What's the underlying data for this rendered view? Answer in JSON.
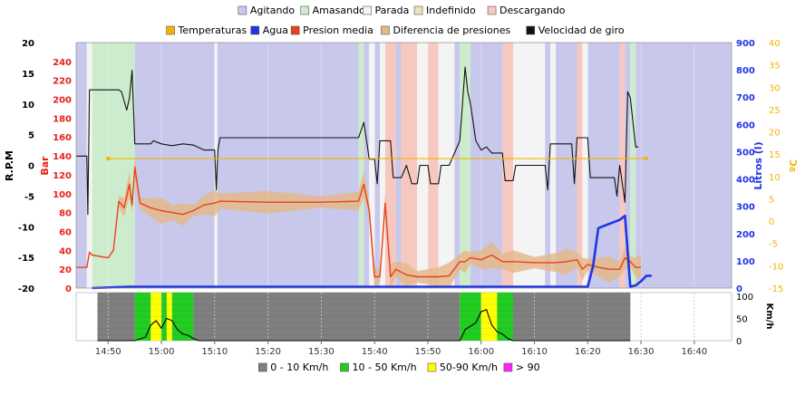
{
  "chart_data": [
    {
      "type": "line",
      "title": "",
      "legend_states": {
        "placement": "top",
        "items": [
          {
            "label": "Agitando",
            "color": "#c8c8ec"
          },
          {
            "label": "Amasando",
            "color": "#cdeccd"
          },
          {
            "label": "Parada",
            "color": "#f4f4f4"
          },
          {
            "label": "Indefinido",
            "color": "#e9e3bc"
          },
          {
            "label": "Descargando",
            "color": "#f6c8c0"
          }
        ]
      },
      "legend_series": {
        "placement": "top",
        "items": [
          {
            "label": "Temperaturas",
            "color": "#f4b400"
          },
          {
            "label": "Agua",
            "color": "#1f35e6"
          },
          {
            "label": "Presion media",
            "color": "#e8421c"
          },
          {
            "label": "Diferencia de presiones",
            "color": "#e4b88c"
          },
          {
            "label": "Velocidad de giro",
            "color": "#111111"
          }
        ]
      },
      "x_axis": {
        "ticks": [
          "14:50",
          "15:00",
          "15:10",
          "15:20",
          "15:30",
          "15:40",
          "15:50",
          "16:00",
          "16:10",
          "16:20",
          "16:30",
          "16:40"
        ],
        "range": [
          "14:44",
          "16:47"
        ]
      },
      "axes": {
        "rpm": {
          "label": "R.P.M",
          "color": "#000000",
          "ylim": [
            -20,
            20
          ],
          "ticks": [
            20,
            15,
            10,
            5,
            0,
            -5,
            -10,
            -15,
            -20
          ]
        },
        "bar": {
          "label": "Bar",
          "color": "#e8201c",
          "ylim": [
            0,
            260
          ],
          "ticks": [
            240,
            220,
            200,
            180,
            160,
            140,
            120,
            100,
            80,
            60,
            40,
            20,
            0
          ]
        },
        "litros": {
          "label": "Litros (l)",
          "color": "#1f35e6",
          "ylim": [
            0,
            900
          ],
          "ticks": [
            900,
            800,
            700,
            600,
            500,
            400,
            300,
            200,
            100,
            0
          ]
        },
        "temp": {
          "label": "ºC",
          "color": "#f4b400",
          "ylim": [
            -15,
            40
          ],
          "ticks": [
            40,
            35,
            30,
            25,
            20,
            15,
            10,
            5,
            0,
            -5,
            -10,
            -15
          ]
        }
      },
      "state_bands": [
        [
          "14:44",
          "14:46",
          "Agitando"
        ],
        [
          "14:46",
          "14:47",
          "Parada"
        ],
        [
          "14:47",
          "14:55",
          "Amasando"
        ],
        [
          "14:55",
          "15:10",
          "Agitando"
        ],
        [
          "15:10",
          "15:10.5",
          "Parada"
        ],
        [
          "15:10.5",
          "15:37",
          "Agitando"
        ],
        [
          "15:37",
          "15:38",
          "Amasando"
        ],
        [
          "15:38",
          "15:39",
          "Agitando"
        ],
        [
          "15:39",
          "15:40",
          "Parada"
        ],
        [
          "15:40",
          "15:41",
          "Agitando"
        ],
        [
          "15:41",
          "15:42",
          "Parada"
        ],
        [
          "15:42",
          "15:44",
          "Descargando"
        ],
        [
          "15:44",
          "15:45",
          "Agitando"
        ],
        [
          "15:45",
          "15:48",
          "Descargando"
        ],
        [
          "15:48",
          "15:50",
          "Parada"
        ],
        [
          "15:50",
          "15:52",
          "Descargando"
        ],
        [
          "15:52",
          "15:55",
          "Parada"
        ],
        [
          "15:55",
          "15:56",
          "Agitando"
        ],
        [
          "15:56",
          "15:58",
          "Amasando"
        ],
        [
          "15:58",
          "16:04",
          "Agitando"
        ],
        [
          "16:04",
          "16:06",
          "Descargando"
        ],
        [
          "16:06",
          "16:12",
          "Parada"
        ],
        [
          "16:12",
          "16:13",
          "Agitando"
        ],
        [
          "16:13",
          "16:14",
          "Parada"
        ],
        [
          "16:14",
          "16:18",
          "Agitando"
        ],
        [
          "16:18",
          "16:19",
          "Descargando"
        ],
        [
          "16:19",
          "16:20",
          "Parada"
        ],
        [
          "16:20",
          "16:26",
          "Agitando"
        ],
        [
          "16:26",
          "16:27",
          "Descargando"
        ],
        [
          "16:27",
          "16:28",
          "Agitando"
        ],
        [
          "16:28",
          "16:29",
          "Amasando"
        ],
        [
          "16:29",
          "16:47",
          "Agitando"
        ]
      ],
      "series": [
        {
          "name": "Velocidad de giro",
          "axis": "rpm",
          "points": [
            [
              "14:44",
              1.5
            ],
            [
              "14:46",
              1.5
            ],
            [
              "14:46.2",
              -8
            ],
            [
              "14:46.5",
              12.3
            ],
            [
              "14:52",
              12.3
            ],
            [
              "14:52.5",
              12
            ],
            [
              "14:53",
              10.5
            ],
            [
              "14:53.5",
              9
            ],
            [
              "14:54",
              11
            ],
            [
              "14:54.5",
              15.5
            ],
            [
              "14:55",
              3.5
            ],
            [
              "14:58",
              3.5
            ],
            [
              "14:58.5",
              4
            ],
            [
              "15:00",
              3.5
            ],
            [
              "15:02",
              3.2
            ],
            [
              "15:04",
              3.5
            ],
            [
              "15:06",
              3.3
            ],
            [
              "15:08",
              2.5
            ],
            [
              "15:10",
              2.5
            ],
            [
              "15:10.3",
              -4
            ],
            [
              "15:10.6",
              2.5
            ],
            [
              "15:11",
              4.5
            ],
            [
              "15:37",
              4.5
            ],
            [
              "15:38",
              7
            ],
            [
              "15:38.5",
              4
            ],
            [
              "15:39",
              1
            ],
            [
              "15:40",
              1
            ],
            [
              "15:40.5",
              -3
            ],
            [
              "15:41",
              4
            ],
            [
              "15:43",
              4
            ],
            [
              "15:43.5",
              -2
            ],
            [
              "15:45",
              -2
            ],
            [
              "15:46",
              0
            ],
            [
              "15:47",
              -3
            ],
            [
              "15:48",
              -3
            ],
            [
              "15:48.5",
              0
            ],
            [
              "15:50",
              0
            ],
            [
              "15:50.5",
              -3
            ],
            [
              "15:52",
              -3
            ],
            [
              "15:52.5",
              0
            ],
            [
              "15:54",
              0
            ],
            [
              "15:56",
              4
            ],
            [
              "15:57",
              16
            ],
            [
              "15:57.5",
              12
            ],
            [
              "15:58",
              10
            ],
            [
              "15:59",
              4
            ],
            [
              "16:00",
              2.5
            ],
            [
              "16:01",
              3
            ],
            [
              "16:02",
              2
            ],
            [
              "16:04",
              2
            ],
            [
              "16:04.5",
              -2.5
            ],
            [
              "16:06",
              -2.5
            ],
            [
              "16:06.5",
              0
            ],
            [
              "16:12",
              0
            ],
            [
              "16:12.5",
              -4
            ],
            [
              "16:13",
              3.5
            ],
            [
              "16:17",
              3.5
            ],
            [
              "16:17.5",
              -3
            ],
            [
              "16:18",
              4.5
            ],
            [
              "16:20",
              4.5
            ],
            [
              "16:20.5",
              -2
            ],
            [
              "16:25",
              -2
            ],
            [
              "16:25.5",
              -5
            ],
            [
              "16:26",
              0
            ],
            [
              "16:27",
              -6
            ],
            [
              "16:27.5",
              12
            ],
            [
              "16:28",
              11
            ],
            [
              "16:29",
              3
            ],
            [
              "16:29.5",
              3
            ]
          ]
        },
        {
          "name": "Presion media",
          "axis": "bar",
          "points": [
            [
              "14:44",
              22
            ],
            [
              "14:46",
              22
            ],
            [
              "14:46.5",
              38
            ],
            [
              "14:47",
              35
            ],
            [
              "14:50",
              32
            ],
            [
              "14:51",
              40
            ],
            [
              "14:52",
              92
            ],
            [
              "14:53",
              85
            ],
            [
              "14:54",
              110
            ],
            [
              "14:54.5",
              88
            ],
            [
              "14:55",
              128
            ],
            [
              "14:56",
              90
            ],
            [
              "14:58",
              85
            ],
            [
              "15:00",
              82
            ],
            [
              "15:02",
              80
            ],
            [
              "15:04",
              78
            ],
            [
              "15:06",
              82
            ],
            [
              "15:08",
              88
            ],
            [
              "15:10",
              90
            ],
            [
              "15:11",
              92
            ],
            [
              "15:20",
              91
            ],
            [
              "15:30",
              91
            ],
            [
              "15:37",
              92
            ],
            [
              "15:38",
              110
            ],
            [
              "15:39",
              82
            ],
            [
              "15:40",
              12
            ],
            [
              "15:41",
              12
            ],
            [
              "15:42",
              90
            ],
            [
              "15:43",
              12
            ],
            [
              "15:44",
              20
            ],
            [
              "15:46",
              14
            ],
            [
              "15:48",
              12
            ],
            [
              "15:52",
              12
            ],
            [
              "15:54",
              13
            ],
            [
              "15:56",
              28
            ],
            [
              "15:57",
              28
            ],
            [
              "15:58",
              32
            ],
            [
              "16:00",
              30
            ],
            [
              "16:02",
              35
            ],
            [
              "16:04",
              28
            ],
            [
              "16:06",
              28
            ],
            [
              "16:10",
              27
            ],
            [
              "16:14",
              27
            ],
            [
              "16:16",
              28
            ],
            [
              "16:18",
              30
            ],
            [
              "16:19",
              20
            ],
            [
              "16:20",
              25
            ],
            [
              "16:22",
              22
            ],
            [
              "16:24",
              20
            ],
            [
              "16:26",
              20
            ],
            [
              "16:27",
              32
            ],
            [
              "16:28",
              28
            ],
            [
              "16:29",
              22
            ],
            [
              "16:30",
              22
            ]
          ]
        },
        {
          "name": "Agua",
          "axis": "litros",
          "points": [
            [
              "14:47",
              0
            ],
            [
              "14:54",
              5
            ],
            [
              "16:20",
              5
            ],
            [
              "16:21",
              80
            ],
            [
              "16:22",
              220
            ],
            [
              "16:24",
              235
            ],
            [
              "16:26",
              250
            ],
            [
              "16:27",
              265
            ],
            [
              "16:28",
              5
            ],
            [
              "16:29",
              10
            ],
            [
              "16:30",
              25
            ],
            [
              "16:31",
              45
            ],
            [
              "16:32",
              45
            ]
          ]
        },
        {
          "name": "Temperaturas",
          "axis": "temp",
          "points": [
            [
              "14:50",
              14
            ],
            [
              "16:31",
              14
            ]
          ]
        }
      ]
    },
    {
      "type": "area",
      "ylabel": "Km/h",
      "ylim": [
        0,
        100
      ],
      "yticks": [
        100,
        50,
        0
      ],
      "legend": {
        "placement": "bottom",
        "items": [
          {
            "label": "0 - 10 Km/h",
            "color": "#7f7f7f"
          },
          {
            "label": "10 - 50 Km/h",
            "color": "#22cc22"
          },
          {
            "label": "50-90 Km/h",
            "color": "#ffff00"
          },
          {
            "label": "> 90",
            "color": "#ff22ff"
          }
        ]
      },
      "speed_bands": [
        [
          "14:48",
          "14:55",
          "0 - 10 Km/h"
        ],
        [
          "14:55",
          "14:58",
          "10 - 50 Km/h"
        ],
        [
          "14:58",
          "15:00",
          "50-90 Km/h"
        ],
        [
          "15:00",
          "15:01",
          "10 - 50 Km/h"
        ],
        [
          "15:01",
          "15:02",
          "50-90 Km/h"
        ],
        [
          "15:02",
          "15:06",
          "10 - 50 Km/h"
        ],
        [
          "15:06",
          "15:56",
          "0 - 10 Km/h"
        ],
        [
          "15:56",
          "16:00",
          "10 - 50 Km/h"
        ],
        [
          "16:00",
          "16:03",
          "50-90 Km/h"
        ],
        [
          "16:03",
          "16:06",
          "10 - 50 Km/h"
        ],
        [
          "16:06",
          "16:28",
          "0 - 10 Km/h"
        ]
      ],
      "speed_points": [
        [
          "14:48",
          0
        ],
        [
          "14:55",
          0
        ],
        [
          "14:57",
          8
        ],
        [
          "14:58",
          35
        ],
        [
          "14:59",
          45
        ],
        [
          "15:00",
          28
        ],
        [
          "15:01",
          50
        ],
        [
          "15:02",
          45
        ],
        [
          "15:03",
          25
        ],
        [
          "15:04",
          15
        ],
        [
          "15:05",
          12
        ],
        [
          "15:06",
          5
        ],
        [
          "15:07",
          0
        ],
        [
          "15:56",
          0
        ],
        [
          "15:57",
          25
        ],
        [
          "15:59",
          40
        ],
        [
          "16:00",
          65
        ],
        [
          "16:01",
          70
        ],
        [
          "16:02",
          35
        ],
        [
          "16:03",
          20
        ],
        [
          "16:04",
          15
        ],
        [
          "16:05",
          5
        ],
        [
          "16:06",
          0
        ],
        [
          "16:28",
          0
        ]
      ]
    }
  ]
}
